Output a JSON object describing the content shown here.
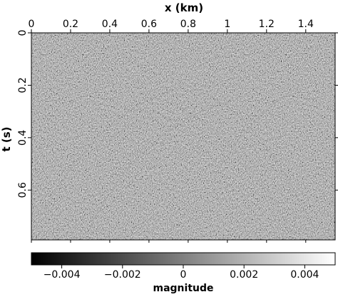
{
  "chart_data": {
    "type": "heatmap",
    "title": "",
    "xlabel": "x (km)",
    "ylabel": "t (s)",
    "x_ticks": [
      0,
      0.2,
      0.4,
      0.6,
      0.8,
      1,
      1.2,
      1.4
    ],
    "x_tick_labels": [
      "0",
      "0.2",
      "0.4",
      "0.6",
      "0.8",
      "1",
      "1.2",
      "1.4"
    ],
    "y_ticks": [
      0,
      0.2,
      0.4,
      0.6
    ],
    "y_tick_labels": [
      "0",
      "0.2",
      "0.4",
      "0.6"
    ],
    "xlim": [
      0,
      1.55
    ],
    "ylim": [
      0,
      0.79
    ],
    "x_axis_position": "top",
    "y_axis_inverted": true,
    "colormap": "gray",
    "colors": {
      "low": "#000000",
      "mid": "#808080",
      "high": "#ffffff"
    },
    "colorbar": {
      "label": "magnitude",
      "range": [
        -0.005,
        0.005
      ],
      "ticks": [
        -0.004,
        -0.002,
        0,
        0.002,
        0.004
      ],
      "tick_labels": [
        "−0.004",
        "−0.002",
        "0",
        "0.002",
        "0.004"
      ],
      "placement": "bottom"
    },
    "description_of_values": "dense random noise centered near 0 with faint crossing diffraction arcs",
    "grid": false
  }
}
